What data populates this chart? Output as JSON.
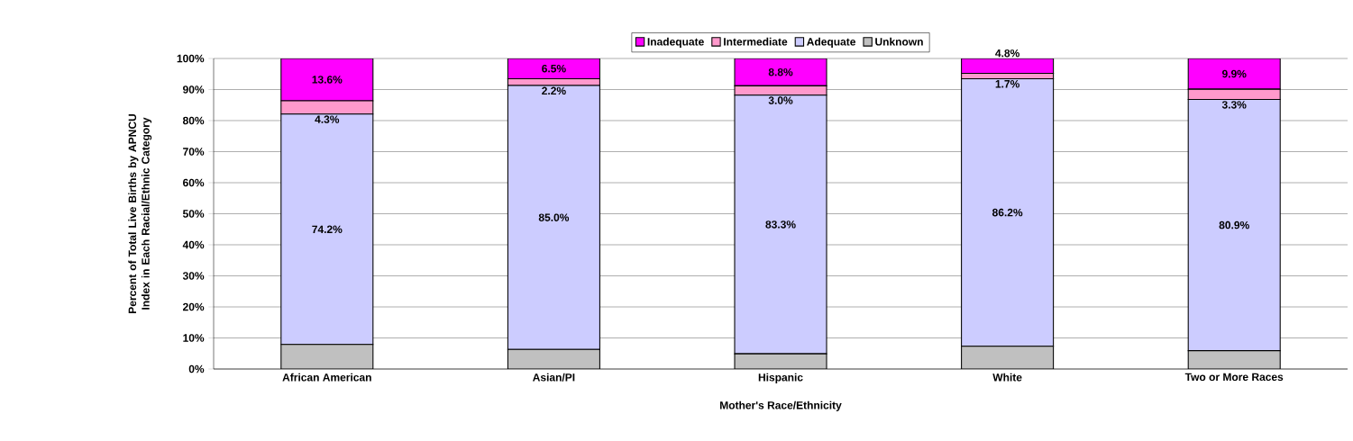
{
  "chart_data": {
    "type": "bar",
    "stacked": true,
    "xlabel": "Mother's Race/Ethnicity",
    "ylabel": "Percent of Total Live Births by APNCU Index in Each Racial/Ethnic Category",
    "categories": [
      "African American",
      "Asian/PI",
      "Hispanic",
      "White",
      "Two or More Races"
    ],
    "series": [
      {
        "name": "Unknown",
        "color": "#c0c0c0",
        "values": [
          7.9,
          6.3,
          4.9,
          7.3,
          5.9
        ],
        "value_labels": [
          null,
          null,
          null,
          null,
          null
        ]
      },
      {
        "name": "Adequate",
        "color": "#ccccff",
        "values": [
          74.2,
          85.0,
          83.3,
          86.2,
          80.9
        ],
        "value_labels": [
          "74.2%",
          "85.0%",
          "83.3%",
          "86.2%",
          "80.9%"
        ]
      },
      {
        "name": "Intermediate",
        "color": "#ff99cc",
        "values": [
          4.3,
          2.2,
          3.0,
          1.7,
          3.3
        ],
        "value_labels": [
          "4.3%",
          "2.2%",
          "3.0%",
          "1.7%",
          "3.3%"
        ]
      },
      {
        "name": "Inadequate",
        "color": "#ff00ff",
        "values": [
          13.6,
          6.5,
          8.8,
          4.8,
          9.9
        ],
        "value_labels": [
          "13.6%",
          "6.5%",
          "8.8%",
          "4.8%",
          "9.9%"
        ]
      }
    ],
    "ylim": [
      0,
      100
    ],
    "yticks": [
      {
        "value": 0,
        "label": "0%"
      },
      {
        "value": 10,
        "label": "10%"
      },
      {
        "value": 20,
        "label": "20%"
      },
      {
        "value": 30,
        "label": "30%"
      },
      {
        "value": 40,
        "label": "40%"
      },
      {
        "value": 50,
        "label": "50%"
      },
      {
        "value": 60,
        "label": "60%"
      },
      {
        "value": 70,
        "label": "70%"
      },
      {
        "value": 80,
        "label": "80%"
      },
      {
        "value": 90,
        "label": "90%"
      },
      {
        "value": 100,
        "label": "100%"
      }
    ],
    "grid": "y",
    "legend": "top"
  }
}
